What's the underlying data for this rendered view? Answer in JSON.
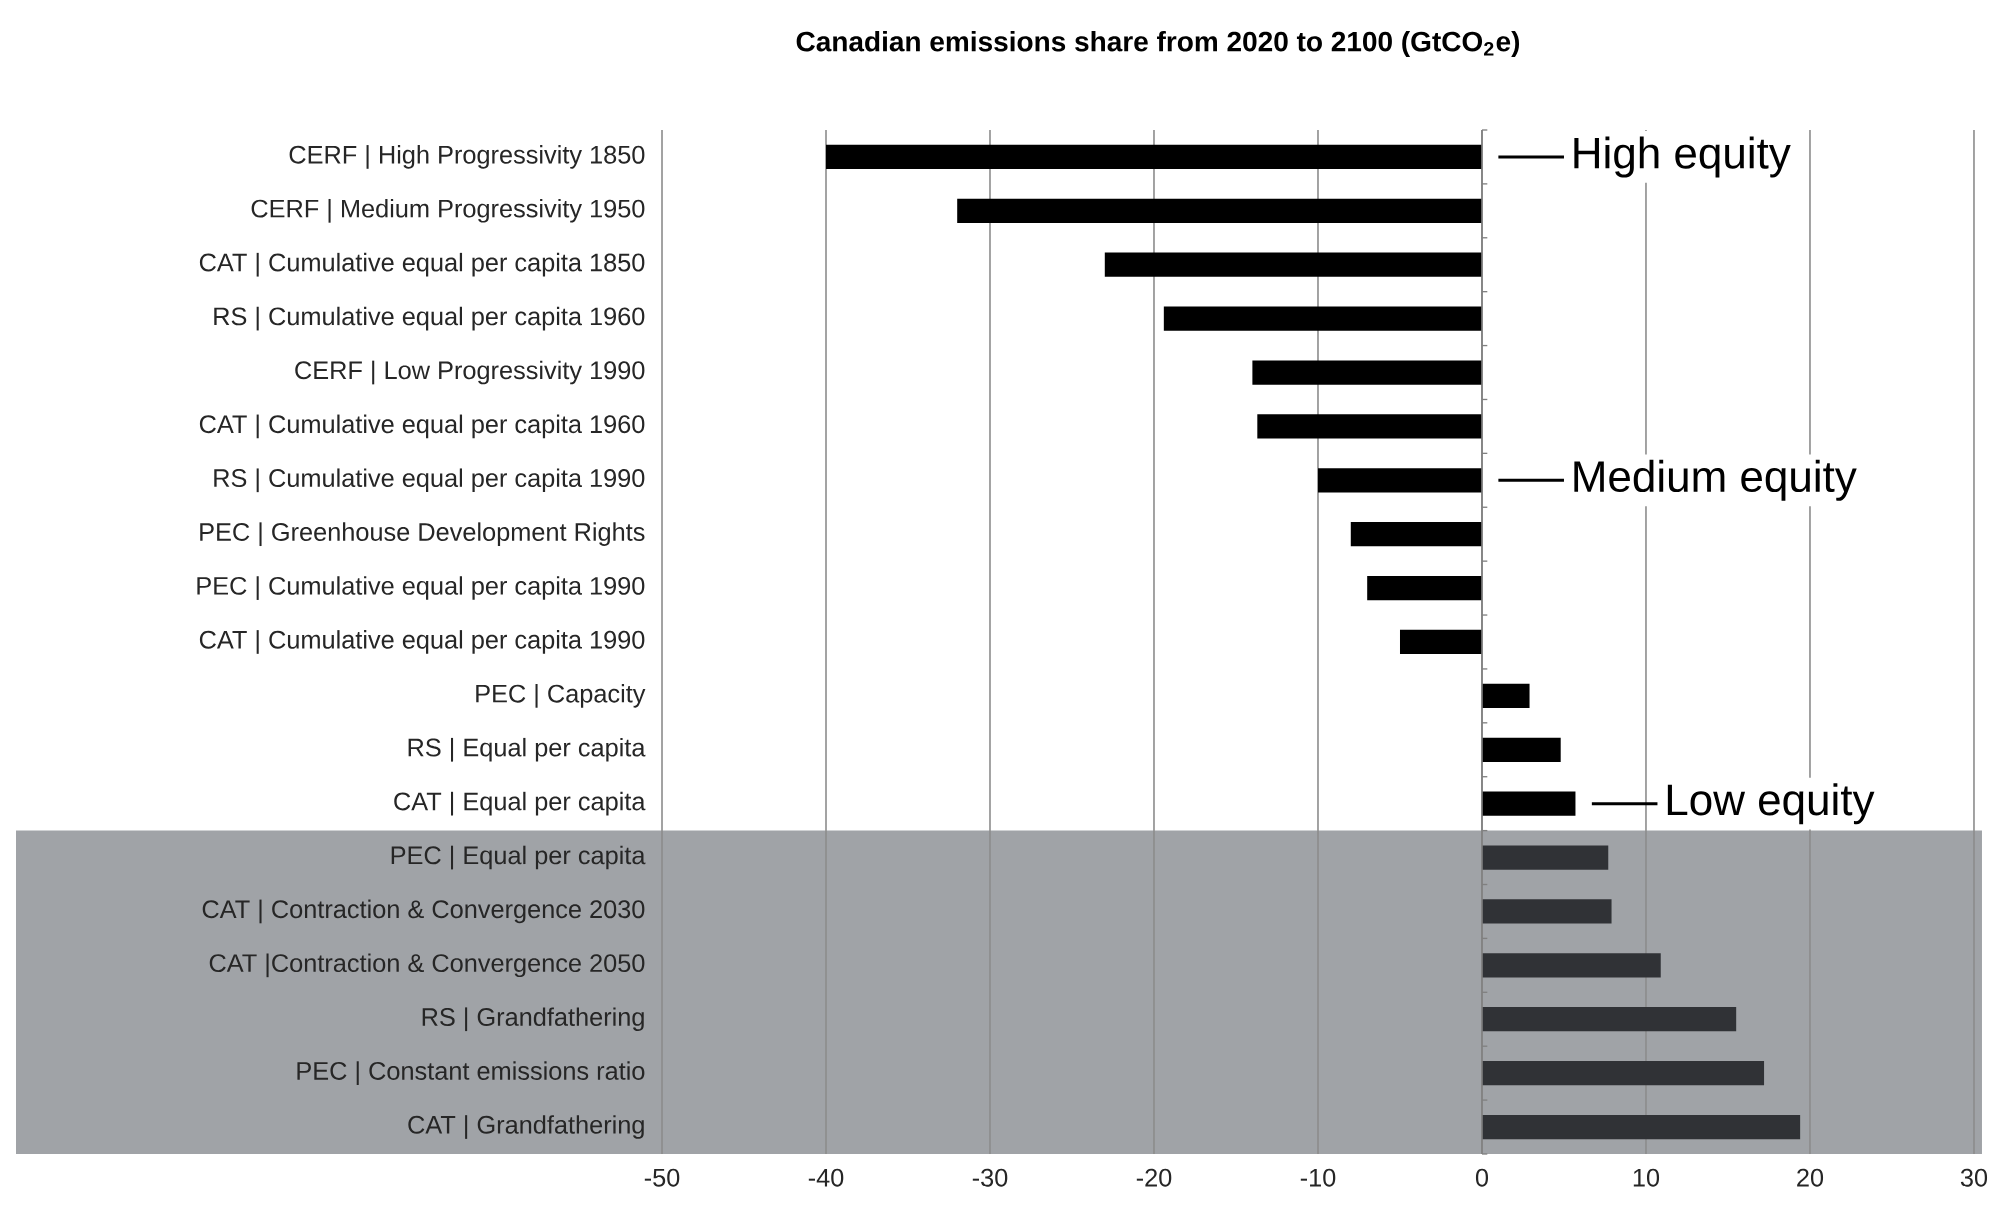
{
  "chart_data": {
    "type": "bar",
    "orientation": "horizontal",
    "title": "Canadian emissions share from 2020 to 2100 (GtCO$_{2}$e)",
    "categories": [
      "CERF | High Progressivity 1850",
      "CERF | Medium Progressivity 1950",
      "CAT | Cumulative equal per capita 1850",
      "RS | Cumulative equal per capita 1960",
      "CERF | Low Progressivity 1990",
      "CAT | Cumulative equal per capita 1960",
      "RS | Cumulative equal per capita 1990",
      "PEC | Greenhouse Development Rights",
      "PEC | Cumulative equal per capita 1990",
      "CAT | Cumulative equal per capita 1990",
      "PEC | Capacity",
      "RS | Equal per capita",
      "CAT | Equal per capita",
      "PEC | Equal per capita",
      "CAT | Contraction & Convergence 2030",
      "CAT |Contraction & Convergence 2050",
      "RS | Grandfathering",
      "PEC | Constant emissions ratio",
      "CAT | Grandfathering"
    ],
    "values": [
      -40,
      -32,
      -23,
      -19.4,
      -14,
      -13.7,
      -10,
      -8,
      -7,
      -5,
      2.9,
      4.8,
      5.7,
      7.7,
      7.9,
      10.9,
      15.5,
      17.2,
      19.4
    ],
    "colors": [
      "#000000",
      "#000000",
      "#000000",
      "#000000",
      "#000000",
      "#000000",
      "#000000",
      "#000000",
      "#000000",
      "#000000",
      "#000000",
      "#000000",
      "#000000",
      "#303236",
      "#303236",
      "#303236",
      "#303236",
      "#303236",
      "#303236"
    ],
    "xlim": [
      -50,
      30
    ],
    "xticks": [
      -50,
      -40,
      -30,
      -20,
      -10,
      0,
      10,
      20,
      30
    ],
    "grid": "x",
    "bands": [
      {
        "axis": "y",
        "from": "PEC | Equal per capita",
        "to": "CAT | Grandfathering",
        "color": "#a0a3a7"
      }
    ],
    "annotations": [
      "High equity",
      "Medium equity",
      "Low equity"
    ]
  }
}
